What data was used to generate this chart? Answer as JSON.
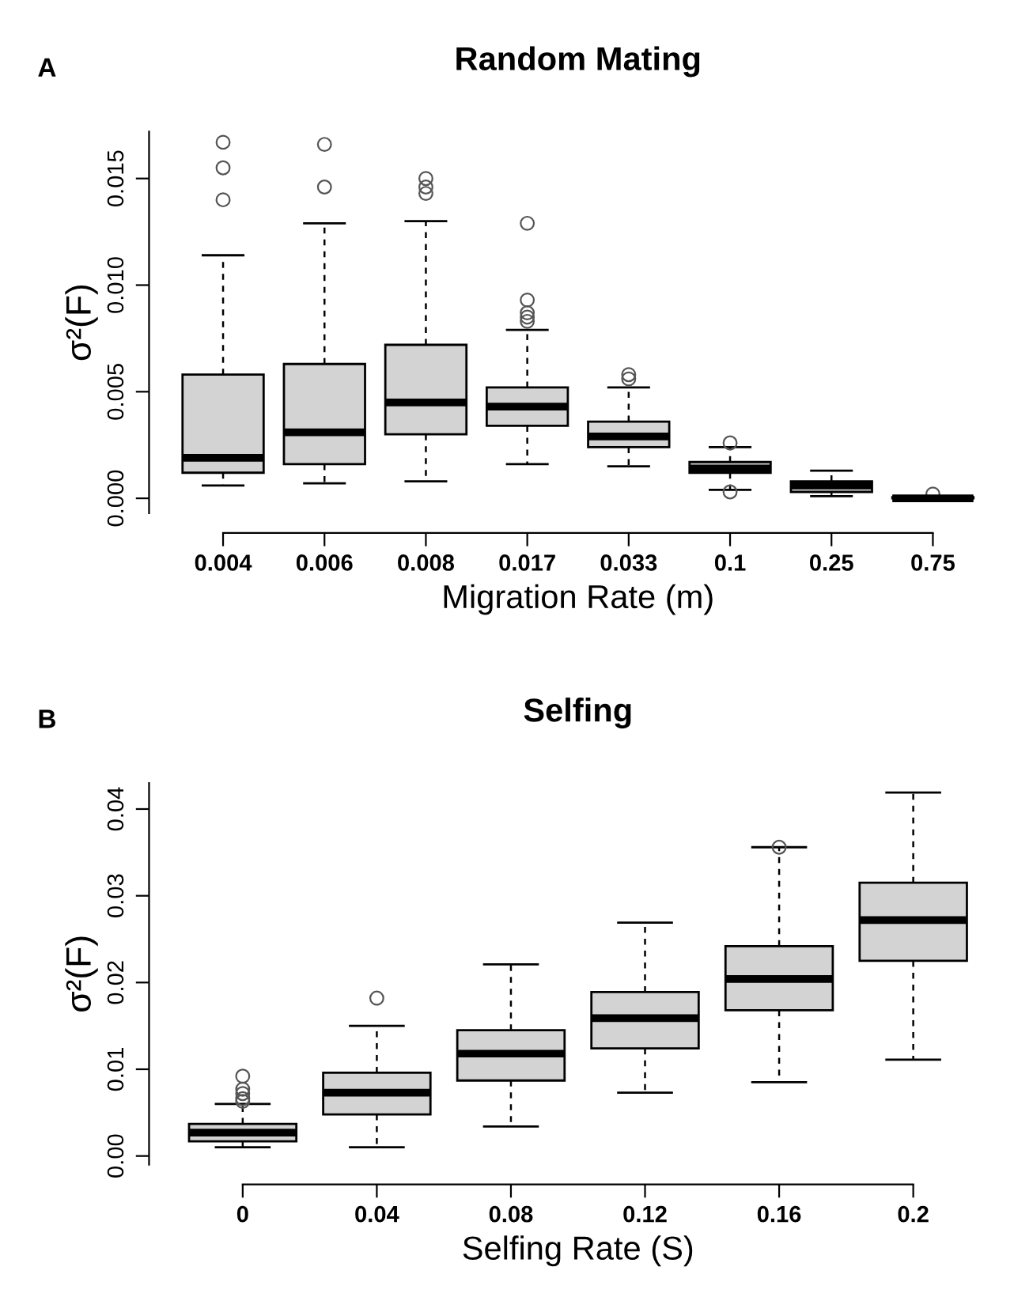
{
  "chart_data": [
    {
      "type": "box",
      "title": "Random Mating",
      "annotations": [
        "A"
      ],
      "xlabel": "Migration Rate (m)",
      "ylabel": "σ²(F)",
      "categories": [
        "0.004",
        "0.006",
        "0.008",
        "0.017",
        "0.033",
        "0.1",
        "0.25",
        "0.75"
      ],
      "ylim": [
        -0.0007,
        0.0172
      ],
      "yticks": [
        {
          "value": 0,
          "label": "0.000"
        },
        {
          "value": 0.005,
          "label": "0.005"
        },
        {
          "value": 0.01,
          "label": "0.010"
        },
        {
          "value": 0.015,
          "label": "0.015"
        }
      ],
      "color": "#d3d3d3",
      "grid": false,
      "legend": false,
      "boxes": [
        {
          "low": 0.0006,
          "q1": 0.0012,
          "median": 0.0019,
          "q3": 0.0058,
          "high": 0.0114,
          "outliers": [
            0.0167,
            0.0155,
            0.014
          ]
        },
        {
          "low": 0.0007,
          "q1": 0.0016,
          "median": 0.0031,
          "q3": 0.0063,
          "high": 0.0129,
          "outliers": [
            0.0166,
            0.0146
          ]
        },
        {
          "low": 0.0008,
          "q1": 0.003,
          "median": 0.0045,
          "q3": 0.0072,
          "high": 0.013,
          "outliers": [
            0.015,
            0.0146,
            0.0143
          ]
        },
        {
          "low": 0.0016,
          "q1": 0.0034,
          "median": 0.0043,
          "q3": 0.0052,
          "high": 0.0079,
          "outliers": [
            0.0129,
            0.0093,
            0.0087,
            0.0085,
            0.0083
          ]
        },
        {
          "low": 0.0015,
          "q1": 0.0024,
          "median": 0.0029,
          "q3": 0.0036,
          "high": 0.0052,
          "outliers": [
            0.0058,
            0.0056
          ]
        },
        {
          "low": 0.0004,
          "q1": 0.0012,
          "median": 0.0014,
          "q3": 0.0017,
          "high": 0.0024,
          "outliers": [
            0.0026,
            0.0003
          ]
        },
        {
          "low": 0.0001,
          "q1": 0.0003,
          "median": 0.0006,
          "q3": 0.0008,
          "high": 0.0013
        },
        {
          "low": 0.0,
          "q1": 0.0,
          "median": 0.0,
          "q3": 5e-05,
          "high": 0.0001,
          "outliers": [
            0.0002
          ]
        }
      ]
    },
    {
      "type": "box",
      "title": "Selfing",
      "annotations": [
        "B"
      ],
      "xlabel": "Selfing Rate (S)",
      "ylabel": "σ²(F)",
      "categories": [
        "0",
        "0.04",
        "0.08",
        "0.12",
        "0.16",
        "0.2"
      ],
      "ylim": [
        -0.001,
        0.043
      ],
      "yticks": [
        {
          "value": 0,
          "label": "0.00"
        },
        {
          "value": 0.01,
          "label": "0.01"
        },
        {
          "value": 0.02,
          "label": "0.02"
        },
        {
          "value": 0.03,
          "label": "0.03"
        },
        {
          "value": 0.04,
          "label": "0.04"
        }
      ],
      "color": "#d3d3d3",
      "grid": false,
      "legend": false,
      "boxes": [
        {
          "low": 0.001,
          "q1": 0.0017,
          "median": 0.0027,
          "q3": 0.0037,
          "high": 0.006,
          "outliers": [
            0.0092,
            0.0077,
            0.0072,
            0.0066,
            0.0063
          ]
        },
        {
          "low": 0.001,
          "q1": 0.0048,
          "median": 0.0073,
          "q3": 0.0096,
          "high": 0.015,
          "outliers": [
            0.0182
          ]
        },
        {
          "low": 0.0034,
          "q1": 0.0087,
          "median": 0.0118,
          "q3": 0.0145,
          "high": 0.0221
        },
        {
          "low": 0.0073,
          "q1": 0.0124,
          "median": 0.0159,
          "q3": 0.0189,
          "high": 0.0269
        },
        {
          "low": 0.0085,
          "q1": 0.0168,
          "median": 0.0204,
          "q3": 0.0242,
          "high": 0.0356,
          "outliers": [
            0.0356
          ]
        },
        {
          "low": 0.0111,
          "q1": 0.0225,
          "median": 0.0272,
          "q3": 0.0315,
          "high": 0.0419
        }
      ]
    }
  ]
}
